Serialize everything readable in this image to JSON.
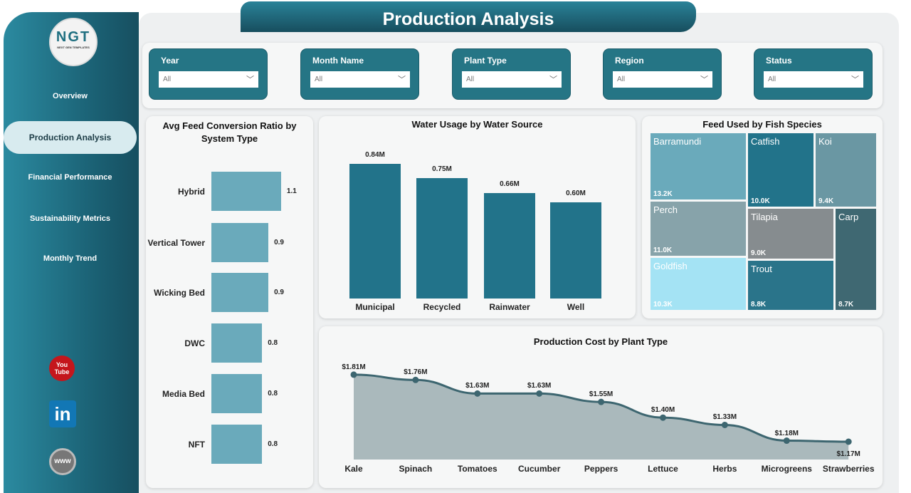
{
  "title": "Production Analysis",
  "logo": {
    "text": "NGT",
    "subtext": "NEXT GEN TEMPLATES"
  },
  "nav": [
    {
      "label": "Overview"
    },
    {
      "label": "Production Analysis",
      "active": true
    },
    {
      "label": "Financial Performance"
    },
    {
      "label": "Sustainability Metrics"
    },
    {
      "label": "Monthly Trend"
    }
  ],
  "social": [
    {
      "icon": "youtube-icon",
      "text": "You Tube"
    },
    {
      "icon": "linkedin-icon",
      "text": "in"
    },
    {
      "icon": "www-globe-icon",
      "text": "www"
    }
  ],
  "filters": [
    {
      "label": "Year",
      "value": "All"
    },
    {
      "label": "Month Name",
      "value": "All"
    },
    {
      "label": "Plant Type",
      "value": "All"
    },
    {
      "label": "Region",
      "value": "All"
    },
    {
      "label": "Status",
      "value": "All"
    }
  ],
  "colors": {
    "primary": "#257585",
    "sidebar": "#1a5f72",
    "bar_light": "#6aaabb",
    "bar_dark": "#22738a",
    "area": "#aab9bc",
    "line": "#3d6670"
  },
  "chart_data": [
    {
      "type": "bar",
      "orientation": "horizontal",
      "title": "Avg Feed Conversion Ratio by System Type",
      "categories": [
        "Hybrid",
        "Vertical Tower",
        "Wicking Bed",
        "DWC",
        "Media Bed",
        "NFT"
      ],
      "values": [
        1.1,
        0.9,
        0.9,
        0.8,
        0.8,
        0.8
      ],
      "labels": [
        "1.1",
        "0.9",
        "0.9",
        "0.8",
        "0.8",
        "0.8"
      ]
    },
    {
      "type": "bar",
      "title": "Water Usage by Water Source",
      "categories": [
        "Municipal",
        "Recycled",
        "Rainwater",
        "Well"
      ],
      "values": [
        0.84,
        0.75,
        0.66,
        0.6
      ],
      "labels": [
        "0.84M",
        "0.75M",
        "0.66M",
        "0.60M"
      ],
      "unit": "M"
    },
    {
      "type": "treemap",
      "title": "Feed Used by Fish Species",
      "items": [
        {
          "name": "Barramundi",
          "value": 13.2,
          "label": "13.2K",
          "color": "#6aaabb"
        },
        {
          "name": "Catfish",
          "value": 10.0,
          "label": "10.0K",
          "color": "#22738a"
        },
        {
          "name": "Koi",
          "value": 9.4,
          "label": "9.4K",
          "color": "#6a97a3"
        },
        {
          "name": "Perch",
          "value": 11.0,
          "label": "11.0K",
          "color": "#87a3aa"
        },
        {
          "name": "Tilapia",
          "value": 9.0,
          "label": "9.0K",
          "color": "#868c8f"
        },
        {
          "name": "Carp",
          "value": 8.7,
          "label": "8.7K",
          "color": "#3f6872"
        },
        {
          "name": "Goldfish",
          "value": 10.3,
          "label": "10.3K",
          "color": "#a4e3f4"
        },
        {
          "name": "Trout",
          "value": 8.8,
          "label": "8.8K",
          "color": "#2a748a"
        }
      ]
    },
    {
      "type": "area",
      "title": "Production Cost by Plant Type",
      "categories": [
        "Kale",
        "Spinach",
        "Tomatoes",
        "Cucumber",
        "Peppers",
        "Lettuce",
        "Herbs",
        "Microgreens",
        "Strawberries"
      ],
      "values": [
        1.81,
        1.76,
        1.63,
        1.63,
        1.55,
        1.4,
        1.33,
        1.18,
        1.17
      ],
      "labels": [
        "$1.81M",
        "$1.76M",
        "$1.63M",
        "$1.63M",
        "$1.55M",
        "$1.40M",
        "$1.33M",
        "$1.18M",
        "$1.17M"
      ]
    }
  ]
}
